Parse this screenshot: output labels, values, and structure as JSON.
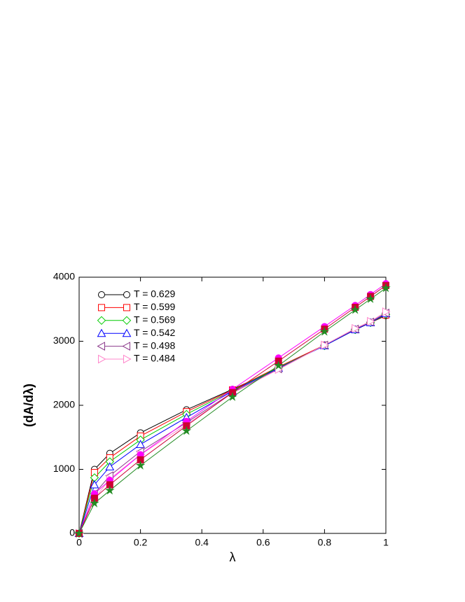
{
  "chart_data": {
    "type": "line",
    "xlabel": "λ",
    "ylabel": "(dA/dλ)",
    "xlim": [
      0,
      1
    ],
    "ylim": [
      0,
      4000
    ],
    "xticks": [
      0,
      0.2,
      0.4,
      0.6,
      0.8,
      1
    ],
    "yticks": [
      0,
      1000,
      2000,
      3000,
      4000
    ],
    "legend": "upper left",
    "x": [
      0,
      0.05,
      0.1,
      0.2,
      0.35,
      0.5,
      0.65,
      0.8,
      0.9,
      0.95,
      1
    ],
    "series": [
      {
        "name": "T = 0.629",
        "color": "#000000",
        "marker": "circle",
        "filled": false,
        "values": [
          0,
          1000,
          1250,
          1570,
          1930,
          2250,
          2580,
          2940,
          3180,
          3290,
          3400
        ]
      },
      {
        "name": "T = 0.599",
        "color": "#ff0000",
        "marker": "square",
        "filled": false,
        "values": [
          0,
          950,
          1180,
          1520,
          1900,
          2240,
          2600,
          2940,
          3180,
          3290,
          3410
        ]
      },
      {
        "name": "T = 0.569",
        "color": "#00cc00",
        "marker": "diamond",
        "filled": false,
        "values": [
          0,
          870,
          1120,
          1460,
          1860,
          2230,
          2590,
          2930,
          3180,
          3290,
          3420
        ]
      },
      {
        "name": "T = 0.542",
        "color": "#0000ff",
        "marker": "triangle-up",
        "filled": false,
        "values": [
          0,
          760,
          1040,
          1390,
          1810,
          2220,
          2580,
          2930,
          3180,
          3290,
          3430
        ]
      },
      {
        "name": "T = 0.498",
        "color": "#8b3a8b",
        "marker": "triangle-left",
        "filled": false,
        "values": [
          0,
          620,
          900,
          1280,
          1730,
          2200,
          2570,
          2940,
          3190,
          3300,
          3440
        ]
      },
      {
        "name": "T = 0.484",
        "color": "#ff88cc",
        "marker": "triangle-right",
        "filled": false,
        "values": [
          0,
          540,
          850,
          1230,
          1700,
          2190,
          2560,
          2940,
          3200,
          3310,
          3460
        ]
      },
      {
        "color": "#ff00ff",
        "marker": "circle",
        "filled": true,
        "values": [
          0,
          620,
          830,
          1230,
          1750,
          2250,
          2740,
          3230,
          3560,
          3730,
          3900
        ]
      },
      {
        "color": "#cc0033",
        "marker": "square",
        "filled": true,
        "values": [
          0,
          550,
          760,
          1150,
          1680,
          2200,
          2690,
          3190,
          3530,
          3700,
          3870
        ]
      },
      {
        "color": "#228b22",
        "marker": "star",
        "filled": true,
        "values": [
          0,
          470,
          670,
          1060,
          1600,
          2130,
          2620,
          3150,
          3490,
          3660,
          3830
        ]
      }
    ]
  }
}
